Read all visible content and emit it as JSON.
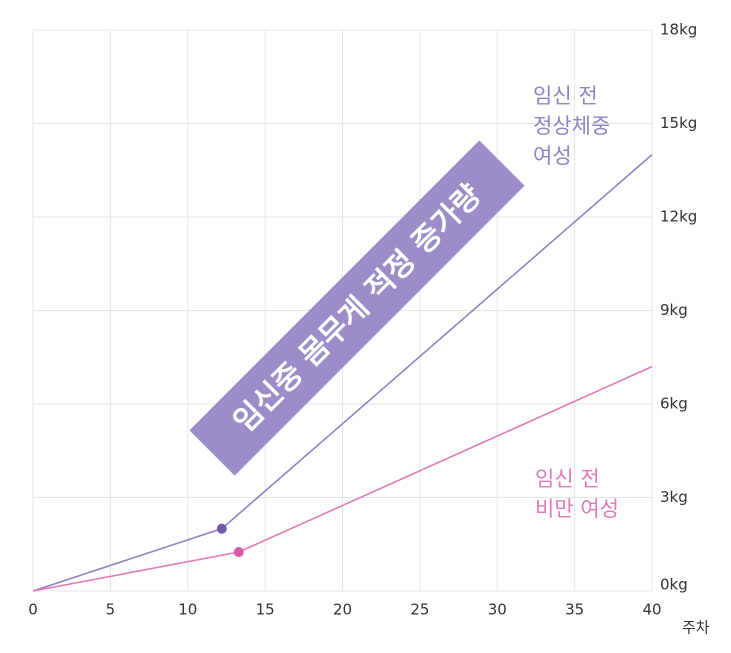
{
  "chart_data": {
    "type": "line",
    "x_label": "주차",
    "banner": "임신중 몸무게 적정 증가량",
    "series": [
      {
        "name": [
          "임신 전",
          "정상체중",
          "여성"
        ],
        "color": "#8e84c4",
        "marker_color": "#6e5aa8",
        "x": [
          0,
          12.2,
          40
        ],
        "values": [
          0,
          2.0,
          14.0
        ]
      },
      {
        "name": [
          "임신 전",
          "비만 여성"
        ],
        "color": "#e07ab8",
        "marker_color": "#d85aa8",
        "x": [
          0,
          13.3,
          40
        ],
        "values": [
          0,
          1.25,
          7.2
        ]
      }
    ],
    "xlim": [
      0,
      40
    ],
    "xticks": [
      0,
      5,
      10,
      15,
      20,
      25,
      30,
      35,
      40
    ],
    "ylim": [
      0,
      18
    ],
    "yticks": [
      {
        "value": 0,
        "label": "0kg"
      },
      {
        "value": 3,
        "label": "3kg"
      },
      {
        "value": 6,
        "label": "6kg"
      },
      {
        "value": 9,
        "label": "9kg"
      },
      {
        "value": 12,
        "label": "12kg"
      },
      {
        "value": 15,
        "label": "15kg"
      },
      {
        "value": 18,
        "label": "18kg"
      }
    ],
    "grid": true
  }
}
